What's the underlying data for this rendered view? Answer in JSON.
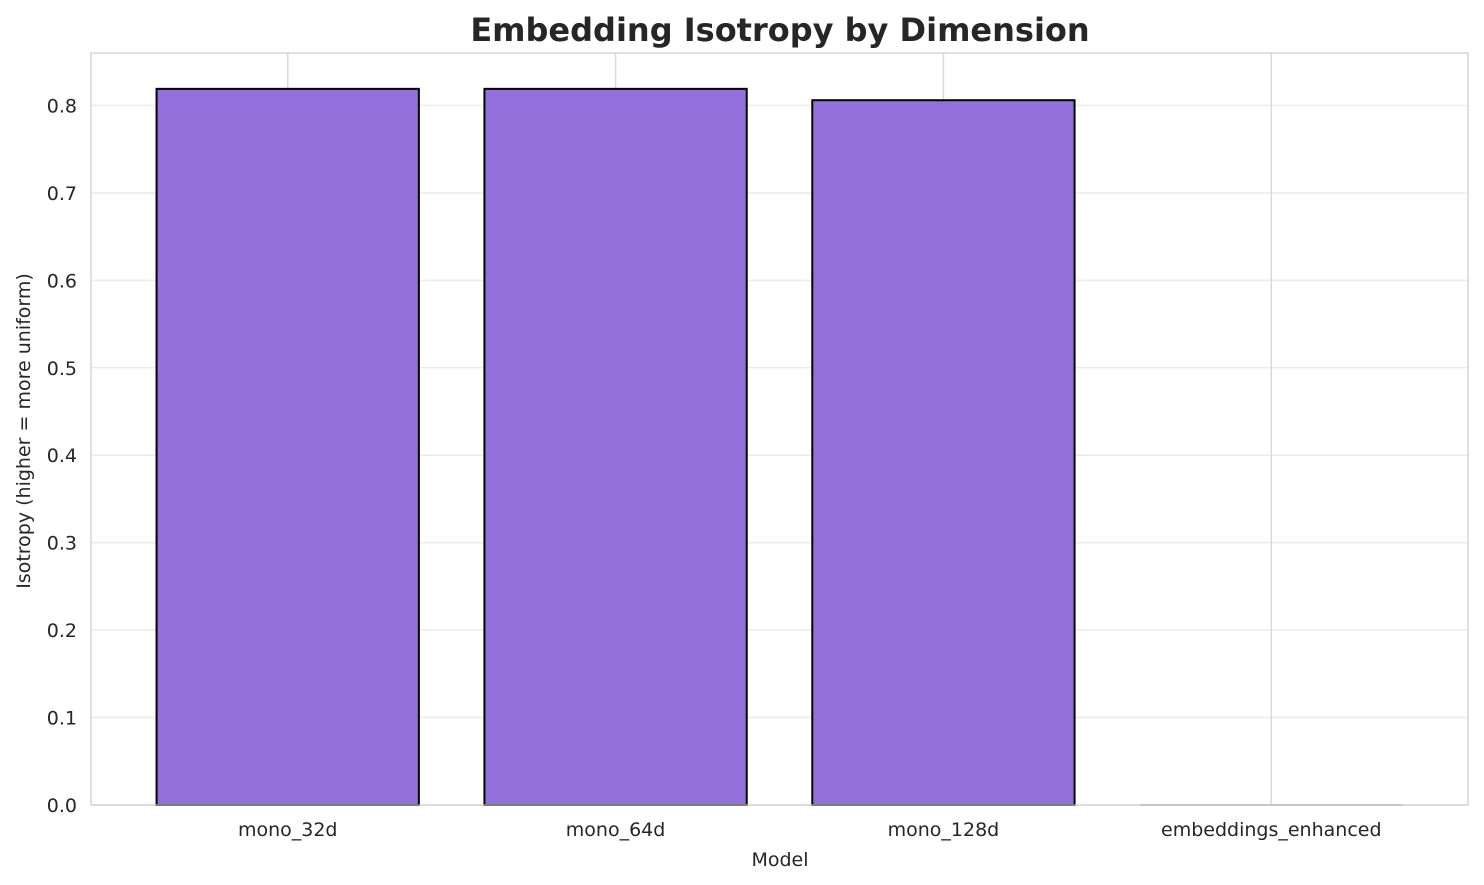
{
  "chart_data": {
    "type": "bar",
    "title": "Embedding Isotropy by Dimension",
    "xlabel": "Model",
    "ylabel": "Isotropy (higher = more uniform)",
    "categories": [
      "mono_32d",
      "mono_64d",
      "mono_128d",
      "embeddings_enhanced"
    ],
    "values": [
      0.819,
      0.819,
      0.806,
      0.0
    ],
    "ylim": [
      0,
      0.86
    ],
    "yticks": [
      0.0,
      0.1,
      0.2,
      0.3,
      0.4,
      0.5,
      0.6,
      0.7,
      0.8
    ],
    "ytick_labels": [
      "0.0",
      "0.1",
      "0.2",
      "0.3",
      "0.4",
      "0.5",
      "0.6",
      "0.7",
      "0.8"
    ],
    "grid": true,
    "legend": "none",
    "colors": {
      "bar_fill": "#9370DB",
      "bar_edge": "#000000",
      "grid": "#ebebeb",
      "spine": "#cccccc",
      "text": "#262626"
    }
  }
}
